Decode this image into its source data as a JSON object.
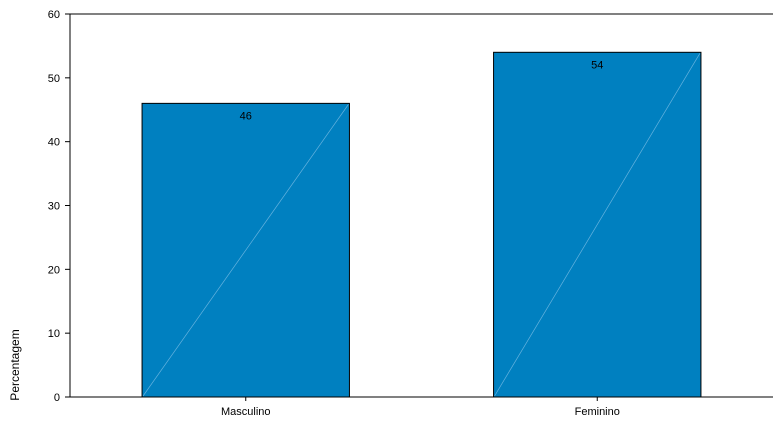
{
  "chart_data": {
    "type": "bar",
    "categories": [
      "Masculino",
      "Feminino"
    ],
    "values": [
      46,
      54
    ],
    "data_labels": [
      "46",
      "54"
    ],
    "title": "",
    "xlabel": "",
    "ylabel": "Percentagem",
    "ylim": [
      0,
      60
    ],
    "yticks": [
      0,
      10,
      20,
      30,
      40,
      50,
      60
    ],
    "grid": false,
    "bar_color": "#0080c0",
    "bar_edge_color": "#000000"
  }
}
